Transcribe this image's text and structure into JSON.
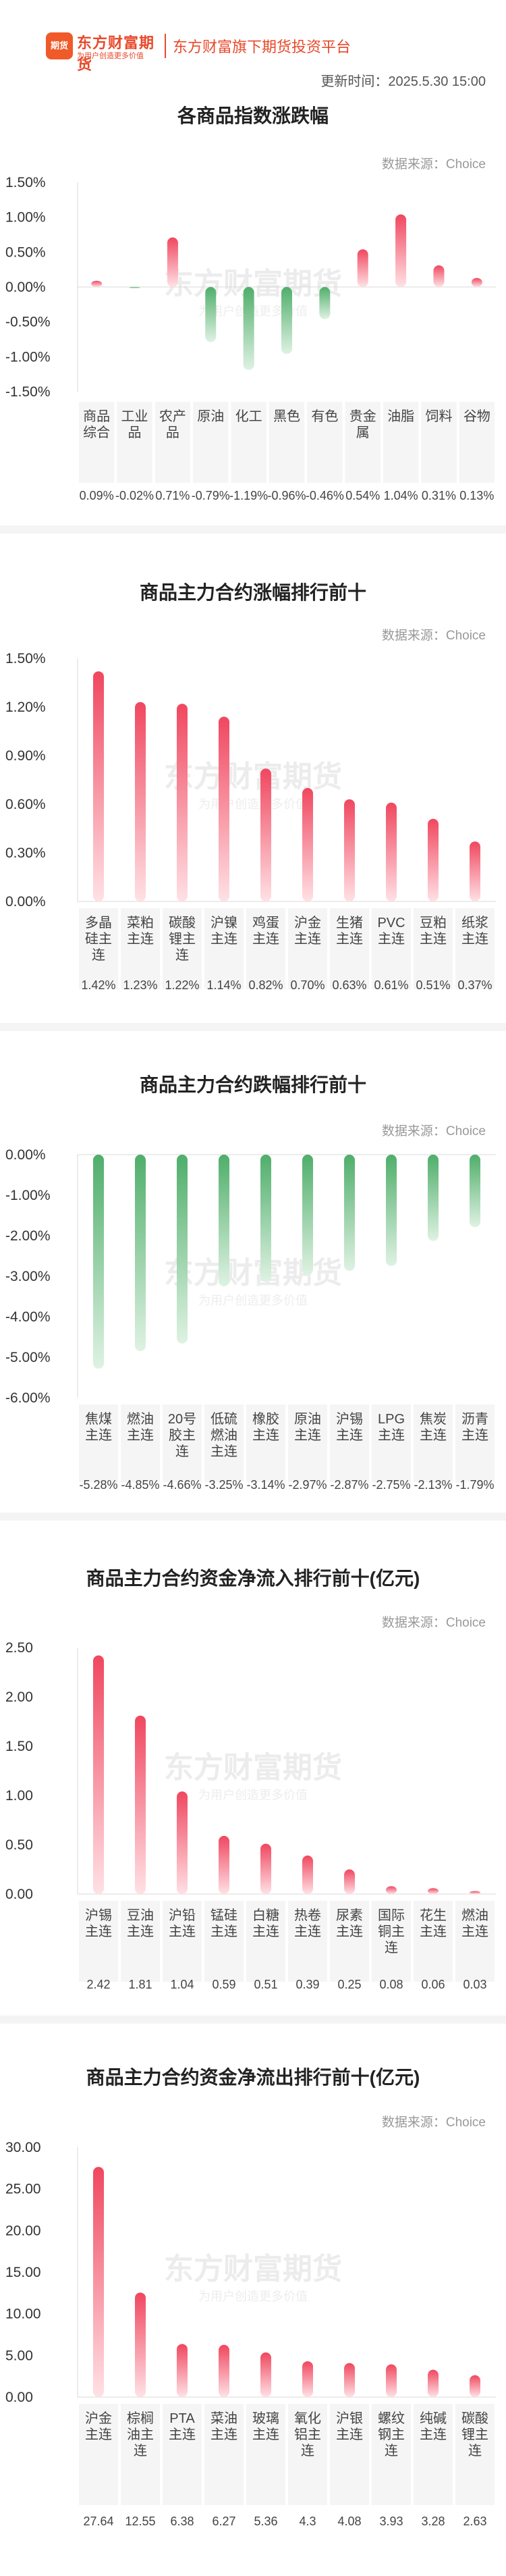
{
  "header": {
    "logo_name": "东方财富期货",
    "logo_badge": "期货",
    "logo_slogan": "为用户创造更多价值",
    "platform": "东方财富旗下期货投资平台",
    "update_time": "更新时间：2025.5.30 15:00"
  },
  "watermark": {
    "name": "东方财富期货",
    "slogan": "为用户创造更多价值"
  },
  "colors": {
    "up": "#f0475f",
    "down": "#4fae6a"
  },
  "charts": [
    {
      "title": "各商品指数涨跌幅",
      "source": "数据来源：Choice",
      "chart_data": {
        "type": "bar",
        "unit": "%",
        "yticks": [
          1.5,
          1.0,
          0.5,
          0.0,
          -0.5,
          -1.0,
          -1.5
        ],
        "ytick_labels": [
          "1.50%",
          "1.00%",
          "0.50%",
          "0.00%",
          "-0.50%",
          "-1.00%",
          "-1.50%"
        ],
        "ylim": [
          -1.5,
          1.5
        ],
        "categories": [
          "商品综合",
          "工业品",
          "农产品",
          "原油",
          "化工",
          "黑色",
          "有色",
          "贵金属",
          "油脂",
          "饲料",
          "谷物"
        ],
        "values": [
          0.09,
          -0.02,
          0.71,
          -0.79,
          -1.19,
          -0.96,
          -0.46,
          0.54,
          1.04,
          0.31,
          0.13
        ],
        "value_labels": [
          "0.09%",
          "-0.02%",
          "0.71%",
          "-0.79%",
          "-1.19%",
          "-0.96%",
          "-0.46%",
          "0.54%",
          "1.04%",
          "0.31%",
          "0.13%"
        ]
      }
    },
    {
      "title": "商品主力合约涨幅排行前十",
      "source": "数据来源：Choice",
      "chart_data": {
        "type": "bar",
        "unit": "%",
        "yticks": [
          1.5,
          1.2,
          0.9,
          0.6,
          0.3,
          0.0
        ],
        "ytick_labels": [
          "1.50%",
          "1.20%",
          "0.90%",
          "0.60%",
          "0.30%",
          "0.00%"
        ],
        "ylim": [
          0,
          1.5
        ],
        "categories": [
          "多晶硅主连",
          "菜粕主连",
          "碳酸锂主连",
          "沪镍主连",
          "鸡蛋主连",
          "沪金主连",
          "生猪主连",
          "PVC主连",
          "豆粕主连",
          "纸浆主连"
        ],
        "values": [
          1.42,
          1.23,
          1.22,
          1.14,
          0.82,
          0.7,
          0.63,
          0.61,
          0.51,
          0.37
        ],
        "value_labels": [
          "1.42%",
          "1.23%",
          "1.22%",
          "1.14%",
          "0.82%",
          "0.70%",
          "0.63%",
          "0.61%",
          "0.51%",
          "0.37%"
        ]
      }
    },
    {
      "title": "商品主力合约跌幅排行前十",
      "source": "数据来源：Choice",
      "chart_data": {
        "type": "bar",
        "unit": "%",
        "yticks": [
          0.0,
          -1.0,
          -2.0,
          -3.0,
          -4.0,
          -5.0,
          -6.0
        ],
        "ytick_labels": [
          "0.00%",
          "-1.00%",
          "-2.00%",
          "-3.00%",
          "-4.00%",
          "-5.00%",
          "-6.00%"
        ],
        "ylim": [
          -6,
          0
        ],
        "categories": [
          "焦煤主连",
          "燃油主连",
          "20号胶主连",
          "低硫燃油主连",
          "橡胶主连",
          "原油主连",
          "沪锡主连",
          "LPG主连",
          "焦炭主连",
          "沥青主连"
        ],
        "values": [
          -5.28,
          -4.85,
          -4.66,
          -3.25,
          -3.14,
          -2.97,
          -2.87,
          -2.75,
          -2.13,
          -1.79
        ],
        "value_labels": [
          "-5.28%",
          "-4.85%",
          "-4.66%",
          "-3.25%",
          "-3.14%",
          "-2.97%",
          "-2.87%",
          "-2.75%",
          "-2.13%",
          "-1.79%"
        ]
      }
    },
    {
      "title": "商品主力合约资金净流入排行前十(亿元)",
      "source": "数据来源：Choice",
      "chart_data": {
        "type": "bar",
        "unit": "亿元",
        "yticks": [
          2.5,
          2.0,
          1.5,
          1.0,
          0.5,
          0.0
        ],
        "ytick_labels": [
          "2.50",
          "2.00",
          "1.50",
          "1.00",
          "0.50",
          "0.00"
        ],
        "ylim": [
          0,
          2.5
        ],
        "categories": [
          "沪锡主连",
          "豆油主连",
          "沪铅主连",
          "锰硅主连",
          "白糖主连",
          "热卷主连",
          "尿素主连",
          "国际铜主连",
          "花生主连",
          "燃油主连"
        ],
        "values": [
          2.42,
          1.81,
          1.04,
          0.59,
          0.51,
          0.39,
          0.25,
          0.08,
          0.06,
          0.03
        ],
        "value_labels": [
          "2.42",
          "1.81",
          "1.04",
          "0.59",
          "0.51",
          "0.39",
          "0.25",
          "0.08",
          "0.06",
          "0.03"
        ]
      }
    },
    {
      "title": "商品主力合约资金净流出排行前十(亿元)",
      "source": "数据来源：Choice",
      "chart_data": {
        "type": "bar",
        "unit": "亿元",
        "yticks": [
          30,
          25,
          20,
          15,
          10,
          5,
          0
        ],
        "ytick_labels": [
          "30.00",
          "25.00",
          "20.00",
          "15.00",
          "10.00",
          "5.00",
          "0.00"
        ],
        "ylim": [
          0,
          30
        ],
        "categories": [
          "沪金主连",
          "棕榈油主连",
          "PTA主连",
          "菜油主连",
          "玻璃主连",
          "氧化铝主连",
          "沪银主连",
          "螺纹钢主连",
          "纯碱主连",
          "碳酸锂主连"
        ],
        "values": [
          27.64,
          12.55,
          6.38,
          6.27,
          5.36,
          4.3,
          4.08,
          3.93,
          3.28,
          2.63
        ],
        "value_labels": [
          "27.64",
          "12.55",
          "6.38",
          "6.27",
          "5.36",
          "4.3",
          "4.08",
          "3.93",
          "3.28",
          "2.63"
        ]
      }
    }
  ]
}
